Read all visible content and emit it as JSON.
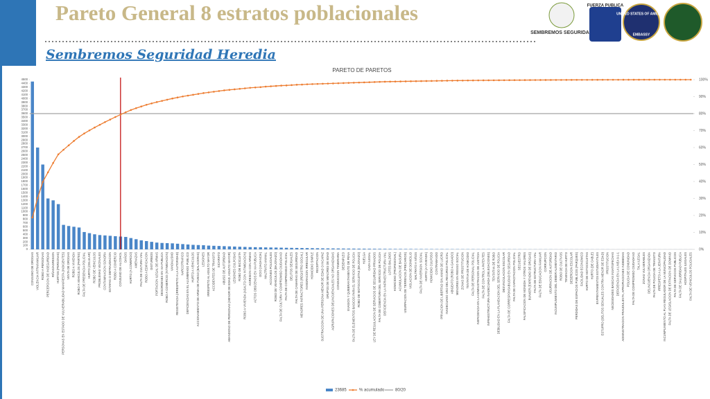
{
  "header": {
    "title": "Pareto General 8 estratos poblacionales",
    "subtitle": "Sembremos Seguridad Heredia",
    "logos": [
      "SEMBREMOS SEGURIDAD",
      "FUERZA PUBLICA",
      "UNITED STATES OF AMERICA",
      "EMBASSY"
    ]
  },
  "chart_data": {
    "type": "pareto",
    "title": "PARETO DE PARETOS",
    "categories": [
      "CONSUMO DE DROGAS",
      "VIOLENCIA INTRAFAMILIAR",
      "ROBO A PERSONAS",
      "PERCEPCION DE INSEGURIDAD",
      "RIÑAS/AGRESION",
      "HURTOS (PERSONAS)",
      "PERSONAS EN ESTADO DE VULNERABILIDAD MANIFIESTA (INDIGENTES)",
      "VENTA DE DROGAS",
      "ROBO A VIVIENDA",
      "ROBO A VEHICULOS (PARTES)",
      "FALTA DE PRESENCIA POLICIAL",
      "HURTO (CELULAR)",
      "ROBO DE VEHICULOS",
      "PROBLEMAS VECINALES",
      "CONTAMINACION SONORA",
      "ESTAFAS O DEFRAUDACION",
      "ROBO A COMERCIO",
      "CONSUMO DE ALCOHOL",
      "DAÑOS",
      "HURTO (A COMERCIO)",
      "AMENAZAS",
      "FALTA DE CULTURA VIAL",
      "ROBO A EDIFICACION",
      "DISTURBIOS",
      "PORTACION ILEGAL DE ARMAS",
      "DESORDENES EN VIA PUBLICA",
      "ROBO A COMERCIO (INTIMIDACION)",
      "VANDALISMO",
      "RESISTENCIA (IRRESPETO A LA AUTORIDAD)",
      "NARCOTRAFICO",
      "DEFICIENCIAS EN EL ALUMBRADO PUBLICO",
      "HURTO A VEHICULOS",
      "ACCIONAMIENTO DE ARMA DE FUEGO (BALACERAS)",
      "LESIONES",
      "IRRESPETO AL ADULTO MAYOR",
      "ACCIDENTES DE TRANSITO",
      "SICARIATO",
      "ABUSO DE AUTORIDAD",
      "ABANDONO DE PERSONAS (MENOR DE EDAD, ADULTO MAYOR)",
      "LESIONES CULPOSAS",
      "ROBO DE BICICLETA",
      "ROBO A VIVIENDA (ASALTO CON INTIMIDACION)",
      "AGRESION CON ARMAS",
      "ACTOS OBSCENOS EN VIA PUBLICA",
      "OCIO (VAGANCIA)",
      "MALTRATO ANIMAL",
      "ACCIONES POLICIALES",
      "ROBO DE VEHICULOS (BAJONAZO)",
      "FALTA DE CULTURA Y COMPROMISO CIUDADANO",
      "FALTA DE COMPROMISO POLICIAL",
      "DELITOS SEXUALES",
      "FALTA DE CAMARAS DE SEGURIDAD",
      "MENORES INFRACTORES (REGISTRO SOCIAL)",
      "INMIGRACION IRREGULAR",
      "HOMICIDIO SIMPLE",
      "RECEPTACION",
      "SUSTRACCION DE UNA PERSONA MENOR DE EDAD O INCAPAZ",
      "GRUPOS DE MENORES DE EDAD",
      "AGRUPACIONES DELINCUENCIALES NO ORGANIZADAS",
      "CONDUCCION TEMERARIA",
      "DESEMPLEO",
      "EVASION Y QUEBRANTAMIENTO DE PENA",
      "FALTA DE ELEMENTOS BASICOS PARA EL SERVICIO DE POLICIA",
      "ROBO DE MOTOCICLETAS (BAJONAZO)",
      "HUELGA",
      "CAZA ILEGAL",
      "LEY DE REGULACION DE SERVICIOS DE SEGURIDAD PRIVADOS",
      "FALTA DE COBERTURA DEL SERVICIO DE POLICIA",
      "DEFICIENCIA EN LA INFRAESTRUCTURA VIAL",
      "LOTES BALDIOS",
      "HOMICIDIO (PROFESIONAL)",
      "ACUMULACION DE BASURA",
      "USURPACION DE TERRENOS (PRECARIOS)",
      "VIOLACION DE DOMICILIO",
      "MALTRATO A NIÑOS",
      "FALTA DE INVERSION SOCIAL",
      "HURTO (A VIVIENDA)",
      "HOMICIDIO CULPOSO",
      "CONTRABANDO",
      "PRIVACION DE LIBERTAD SIN ANIMO DE LUCRO",
      "INADECUADO USO DEL RECURSO POLICIAL",
      "ABIGEATO (ROBO A GANADO)",
      "MENORES EN RIESGO SOCIAL",
      "ZONAS DE PROSTITUCION",
      "TENTATIVA DE HOMICIDIO",
      "FALTA DE PERSONAL POLICIAL",
      "INEFICIENCIA EN LA ADMINISTRACION DE JUSTICIA",
      "FALTA DE CONTROL A PATENTES",
      "INFRAESTRUCTURA INADECUADA (DELEGACIONES)",
      "TENTATIVA DE ROBO",
      "DEBILIDAD EN LA PLANEACION DEL SERVICIO DE POLICIA",
      "DESVINCULACION ESCOLAR",
      "FALTA DE CORRESPONSABILIDAD EN SEGURIDAD",
      "FALTA DE CAPACITACION POLICIAL",
      "SECUESTRO",
      "FALSIFICACION DE MONEDA Y OTROS VALORES",
      "BUNKER (EXPENDIO DE DROGAS)",
      "FALTA DE ESTRUCTURA VIAL",
      "FALTA DE EDUCACION FAMILIAR",
      "CORRUPCION",
      "USURPACION DE AUTORIDAD",
      "INCUMPLIMIENTO DEL DEBER ALIMENTARIO",
      "ROBO DE CULTIVOS",
      "TENENCIA DE HURTO",
      "DESERCION ESCOLAR",
      "PERDIDAS DE ESPACIOS PUBLICOS (PARQUES)",
      "FACILIDAD ECONOMICO",
      "HURTO DE MOTOCICLETAS",
      "HURTO (DE CABLE)",
      "ENFRENTAMIENTOS ESTUDIANTILES",
      "ESTUPRO (DELITOS SEXUALES CONTRA MENOR DE EDAD)",
      "PROSTITUCION",
      "NECESIDADES BASICAS INSATISFECHAS",
      "DEFICIENCIA EN LA LINEA 9-1-1",
      "ADMINISTRACION FRAUDULENTA, APROPIACIONES INDEBIDAS",
      "POLICIA DE COMUNIDAD",
      "FALTA DE COMPROMISO CIUDADANO",
      "TALA ILEGAL",
      "ZONAS VULNERABLES",
      "DELINCUENCIA ORGANIZADA",
      "FALTA DE POLICIA DE TRANSITO",
      "IRRESPETO A LA JEFATURA",
      "INCUMPLIMIENTO AL PLAN REGULADOR DE LA MUNICIPALIDAD",
      "FALTA DE LEGISLACION DE EXTINCION DE DOMINIO",
      "FALTA DE SERVICIOS PUBLICOS",
      "FALTA DE SALUBRIDAD PUBLICA",
      "HOSPITALES ILEGALES",
      "FALTA DE VEHICULOS POLICIALES"
    ],
    "series": [
      {
        "name": "23685",
        "color": "#4a86c8",
        "values": [
          4450,
          2700,
          2250,
          1350,
          1300,
          1200,
          650,
          620,
          600,
          580,
          460,
          430,
          400,
          380,
          370,
          360,
          350,
          340,
          330,
          300,
          270,
          240,
          220,
          200,
          180,
          170,
          165,
          160,
          150,
          140,
          130,
          120,
          115,
          110,
          100,
          95,
          90,
          85,
          80,
          75,
          70,
          65,
          60,
          58,
          55,
          52,
          50,
          48,
          45,
          42,
          40,
          38,
          36,
          34,
          32,
          30,
          28,
          26,
          25,
          24,
          22,
          21,
          20,
          19,
          18,
          17,
          16,
          15,
          14,
          13,
          12,
          12,
          11,
          11,
          10,
          10,
          9,
          9,
          8,
          8,
          7,
          7,
          7,
          6,
          6,
          6,
          5,
          5,
          5,
          5,
          4,
          4,
          4,
          4,
          4,
          3,
          3,
          3,
          3,
          3,
          3,
          2,
          2,
          2,
          2,
          2,
          2,
          2,
          2,
          2,
          2,
          2,
          1,
          1,
          1,
          1,
          1,
          1,
          1,
          1,
          1,
          1,
          1,
          1,
          1,
          1,
          1,
          1
        ]
      },
      {
        "name": "% acumulado",
        "color": "#ed7d31",
        "axis": "y2",
        "values": [
          18.8,
          30.2,
          39.7,
          45.4,
          50.9,
          56.0,
          58.7,
          61.3,
          63.9,
          66.3,
          68.3,
          70.1,
          71.8,
          73.4,
          75.0,
          76.5,
          78.0,
          79.4,
          80.8,
          82.1,
          83.2,
          84.2,
          85.2,
          86.0,
          86.8,
          87.5,
          88.2,
          88.9,
          89.5,
          90.1,
          90.6,
          91.1,
          91.6,
          92.1,
          92.5,
          92.9,
          93.3,
          93.7,
          94.0,
          94.3,
          94.6,
          94.9,
          95.2,
          95.4,
          95.6,
          95.9,
          96.1,
          96.3,
          96.5,
          96.6,
          96.8,
          97.0,
          97.1,
          97.3,
          97.4,
          97.5,
          97.6,
          97.7,
          97.8,
          97.9,
          98.0,
          98.1,
          98.2,
          98.3,
          98.4,
          98.5,
          98.6,
          98.7,
          98.8,
          98.85,
          98.9,
          98.95,
          99.0,
          99.05,
          99.1,
          99.15,
          99.2,
          99.25,
          99.3,
          99.35,
          99.4,
          99.43,
          99.46,
          99.49,
          99.52,
          99.55,
          99.58,
          99.6,
          99.62,
          99.64,
          99.66,
          99.68,
          99.7,
          99.72,
          99.74,
          99.76,
          99.78,
          99.8,
          99.81,
          99.82,
          99.83,
          99.84,
          99.85,
          99.86,
          99.87,
          99.88,
          99.89,
          99.9,
          99.91,
          99.92,
          99.93,
          99.94,
          99.95,
          99.95,
          99.96,
          99.96,
          99.97,
          99.97,
          99.98,
          99.98,
          99.98,
          99.99,
          99.99,
          99.99,
          99.99,
          100,
          100,
          100
        ]
      }
    ],
    "reference_line": {
      "name": "80/20",
      "value": 80,
      "axis": "y2",
      "color": "#a5a5a5"
    },
    "cutoff_category": "CONSUMO DE ALCOHOL",
    "cutoff_color": "#c00000",
    "ylim": [
      0,
      4500
    ],
    "yticks": [
      0,
      100,
      200,
      300,
      400,
      500,
      600,
      700,
      800,
      900,
      1000,
      1100,
      1200,
      1300,
      1400,
      1500,
      1600,
      1700,
      1800,
      1900,
      2000,
      2100,
      2200,
      2300,
      2400,
      2500,
      2600,
      2700,
      2800,
      2900,
      3000,
      3100,
      3200,
      3300,
      3400,
      3500,
      3600,
      3700,
      3800,
      3900,
      4000,
      4100,
      4200,
      4300,
      4400,
      4500
    ],
    "y2lim": [
      0,
      100
    ],
    "y2ticks": [
      {
        "value": 0,
        "label": "0%"
      },
      {
        "value": 10,
        "label": "10%"
      },
      {
        "value": 20,
        "label": "20%"
      },
      {
        "value": 30,
        "label": "30%"
      },
      {
        "value": 40,
        "label": "40%"
      },
      {
        "value": 50,
        "label": "50%"
      },
      {
        "value": 60,
        "label": "60%"
      },
      {
        "value": 70,
        "label": "70%"
      },
      {
        "value": 80,
        "label": "80%"
      },
      {
        "value": 90,
        "label": "90%"
      },
      {
        "value": 100,
        "label": "100%"
      }
    ],
    "legend": "bottom"
  }
}
